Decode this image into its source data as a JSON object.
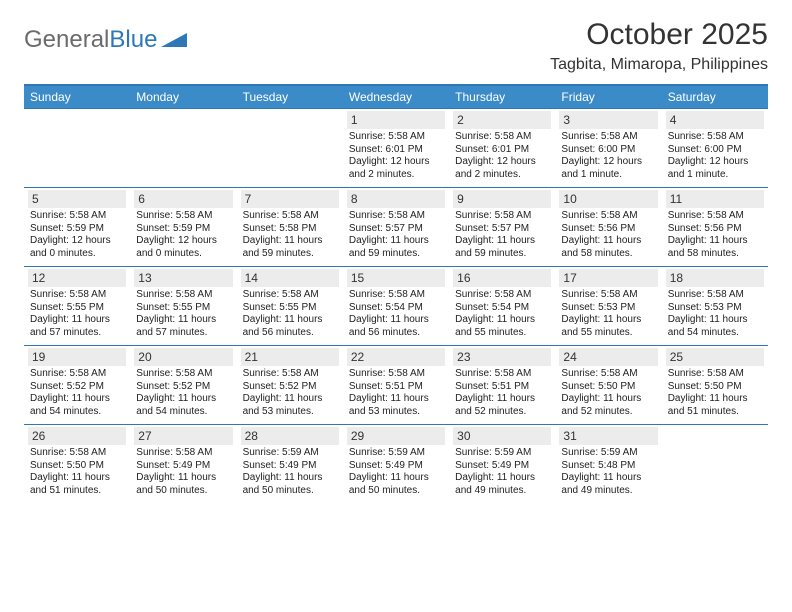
{
  "logo": {
    "text1": "General",
    "text2": "Blue"
  },
  "title": "October 2025",
  "location": "Tagbita, Mimaropa, Philippines",
  "colors": {
    "header_bg": "#3b8bc9",
    "border": "#2f78b7",
    "daynum_bg": "#ececec",
    "text": "#333333",
    "logo_gray": "#6b6b6b",
    "logo_blue": "#2f78b7"
  },
  "day_names": [
    "Sunday",
    "Monday",
    "Tuesday",
    "Wednesday",
    "Thursday",
    "Friday",
    "Saturday"
  ],
  "weeks": [
    [
      {
        "n": "",
        "sunrise": "",
        "sunset": "",
        "daylight": ""
      },
      {
        "n": "",
        "sunrise": "",
        "sunset": "",
        "daylight": ""
      },
      {
        "n": "",
        "sunrise": "",
        "sunset": "",
        "daylight": ""
      },
      {
        "n": "1",
        "sunrise": "Sunrise: 5:58 AM",
        "sunset": "Sunset: 6:01 PM",
        "daylight": "Daylight: 12 hours and 2 minutes."
      },
      {
        "n": "2",
        "sunrise": "Sunrise: 5:58 AM",
        "sunset": "Sunset: 6:01 PM",
        "daylight": "Daylight: 12 hours and 2 minutes."
      },
      {
        "n": "3",
        "sunrise": "Sunrise: 5:58 AM",
        "sunset": "Sunset: 6:00 PM",
        "daylight": "Daylight: 12 hours and 1 minute."
      },
      {
        "n": "4",
        "sunrise": "Sunrise: 5:58 AM",
        "sunset": "Sunset: 6:00 PM",
        "daylight": "Daylight: 12 hours and 1 minute."
      }
    ],
    [
      {
        "n": "5",
        "sunrise": "Sunrise: 5:58 AM",
        "sunset": "Sunset: 5:59 PM",
        "daylight": "Daylight: 12 hours and 0 minutes."
      },
      {
        "n": "6",
        "sunrise": "Sunrise: 5:58 AM",
        "sunset": "Sunset: 5:59 PM",
        "daylight": "Daylight: 12 hours and 0 minutes."
      },
      {
        "n": "7",
        "sunrise": "Sunrise: 5:58 AM",
        "sunset": "Sunset: 5:58 PM",
        "daylight": "Daylight: 11 hours and 59 minutes."
      },
      {
        "n": "8",
        "sunrise": "Sunrise: 5:58 AM",
        "sunset": "Sunset: 5:57 PM",
        "daylight": "Daylight: 11 hours and 59 minutes."
      },
      {
        "n": "9",
        "sunrise": "Sunrise: 5:58 AM",
        "sunset": "Sunset: 5:57 PM",
        "daylight": "Daylight: 11 hours and 59 minutes."
      },
      {
        "n": "10",
        "sunrise": "Sunrise: 5:58 AM",
        "sunset": "Sunset: 5:56 PM",
        "daylight": "Daylight: 11 hours and 58 minutes."
      },
      {
        "n": "11",
        "sunrise": "Sunrise: 5:58 AM",
        "sunset": "Sunset: 5:56 PM",
        "daylight": "Daylight: 11 hours and 58 minutes."
      }
    ],
    [
      {
        "n": "12",
        "sunrise": "Sunrise: 5:58 AM",
        "sunset": "Sunset: 5:55 PM",
        "daylight": "Daylight: 11 hours and 57 minutes."
      },
      {
        "n": "13",
        "sunrise": "Sunrise: 5:58 AM",
        "sunset": "Sunset: 5:55 PM",
        "daylight": "Daylight: 11 hours and 57 minutes."
      },
      {
        "n": "14",
        "sunrise": "Sunrise: 5:58 AM",
        "sunset": "Sunset: 5:55 PM",
        "daylight": "Daylight: 11 hours and 56 minutes."
      },
      {
        "n": "15",
        "sunrise": "Sunrise: 5:58 AM",
        "sunset": "Sunset: 5:54 PM",
        "daylight": "Daylight: 11 hours and 56 minutes."
      },
      {
        "n": "16",
        "sunrise": "Sunrise: 5:58 AM",
        "sunset": "Sunset: 5:54 PM",
        "daylight": "Daylight: 11 hours and 55 minutes."
      },
      {
        "n": "17",
        "sunrise": "Sunrise: 5:58 AM",
        "sunset": "Sunset: 5:53 PM",
        "daylight": "Daylight: 11 hours and 55 minutes."
      },
      {
        "n": "18",
        "sunrise": "Sunrise: 5:58 AM",
        "sunset": "Sunset: 5:53 PM",
        "daylight": "Daylight: 11 hours and 54 minutes."
      }
    ],
    [
      {
        "n": "19",
        "sunrise": "Sunrise: 5:58 AM",
        "sunset": "Sunset: 5:52 PM",
        "daylight": "Daylight: 11 hours and 54 minutes."
      },
      {
        "n": "20",
        "sunrise": "Sunrise: 5:58 AM",
        "sunset": "Sunset: 5:52 PM",
        "daylight": "Daylight: 11 hours and 54 minutes."
      },
      {
        "n": "21",
        "sunrise": "Sunrise: 5:58 AM",
        "sunset": "Sunset: 5:52 PM",
        "daylight": "Daylight: 11 hours and 53 minutes."
      },
      {
        "n": "22",
        "sunrise": "Sunrise: 5:58 AM",
        "sunset": "Sunset: 5:51 PM",
        "daylight": "Daylight: 11 hours and 53 minutes."
      },
      {
        "n": "23",
        "sunrise": "Sunrise: 5:58 AM",
        "sunset": "Sunset: 5:51 PM",
        "daylight": "Daylight: 11 hours and 52 minutes."
      },
      {
        "n": "24",
        "sunrise": "Sunrise: 5:58 AM",
        "sunset": "Sunset: 5:50 PM",
        "daylight": "Daylight: 11 hours and 52 minutes."
      },
      {
        "n": "25",
        "sunrise": "Sunrise: 5:58 AM",
        "sunset": "Sunset: 5:50 PM",
        "daylight": "Daylight: 11 hours and 51 minutes."
      }
    ],
    [
      {
        "n": "26",
        "sunrise": "Sunrise: 5:58 AM",
        "sunset": "Sunset: 5:50 PM",
        "daylight": "Daylight: 11 hours and 51 minutes."
      },
      {
        "n": "27",
        "sunrise": "Sunrise: 5:58 AM",
        "sunset": "Sunset: 5:49 PM",
        "daylight": "Daylight: 11 hours and 50 minutes."
      },
      {
        "n": "28",
        "sunrise": "Sunrise: 5:59 AM",
        "sunset": "Sunset: 5:49 PM",
        "daylight": "Daylight: 11 hours and 50 minutes."
      },
      {
        "n": "29",
        "sunrise": "Sunrise: 5:59 AM",
        "sunset": "Sunset: 5:49 PM",
        "daylight": "Daylight: 11 hours and 50 minutes."
      },
      {
        "n": "30",
        "sunrise": "Sunrise: 5:59 AM",
        "sunset": "Sunset: 5:49 PM",
        "daylight": "Daylight: 11 hours and 49 minutes."
      },
      {
        "n": "31",
        "sunrise": "Sunrise: 5:59 AM",
        "sunset": "Sunset: 5:48 PM",
        "daylight": "Daylight: 11 hours and 49 minutes."
      },
      {
        "n": "",
        "sunrise": "",
        "sunset": "",
        "daylight": ""
      }
    ]
  ]
}
